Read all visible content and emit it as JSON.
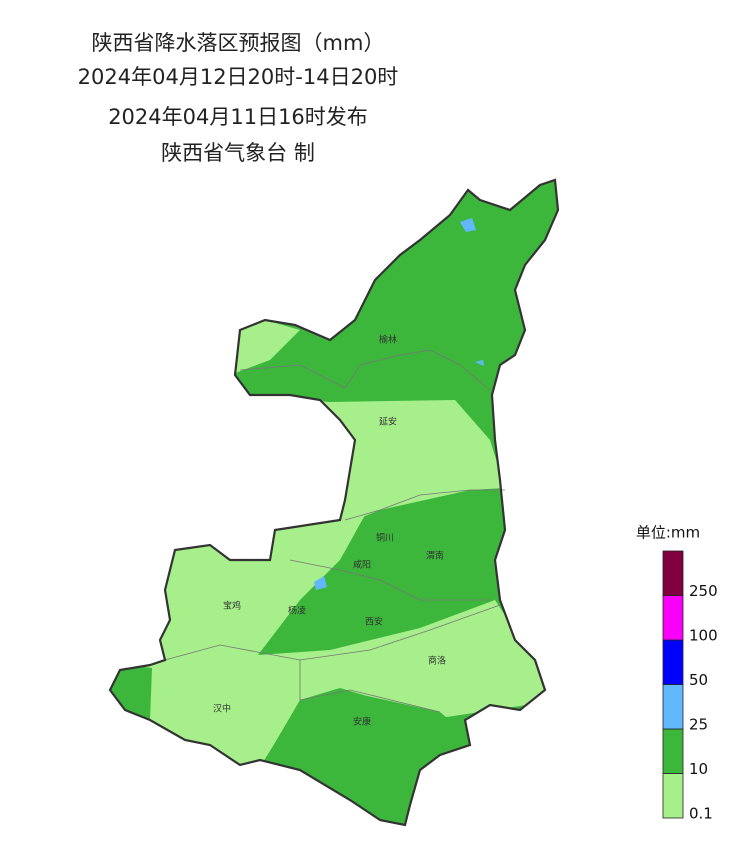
{
  "header": {
    "title": "陕西省降水落区预报图（mm）",
    "period": "2024年04月12日20时-14日20时",
    "issued": "2024年04月11日16时发布",
    "maker": "陕西省气象台 制"
  },
  "cities": [
    "榆林",
    "延安",
    "铜川",
    "渭南",
    "咸阳",
    "宝鸡",
    "杨凌",
    "西安",
    "商洛",
    "汉中",
    "安康"
  ],
  "legend": {
    "title": "单位:mm",
    "items": [
      {
        "color": "#a6ef8b",
        "label": "0.1"
      },
      {
        "color": "#3cb73c",
        "label": "10"
      },
      {
        "color": "#61b8ff",
        "label": "25"
      },
      {
        "color": "#0000fe",
        "label": "50"
      },
      {
        "color": "#fa00fa",
        "label": "100"
      },
      {
        "color": "#800040",
        "label": "250"
      }
    ]
  }
}
